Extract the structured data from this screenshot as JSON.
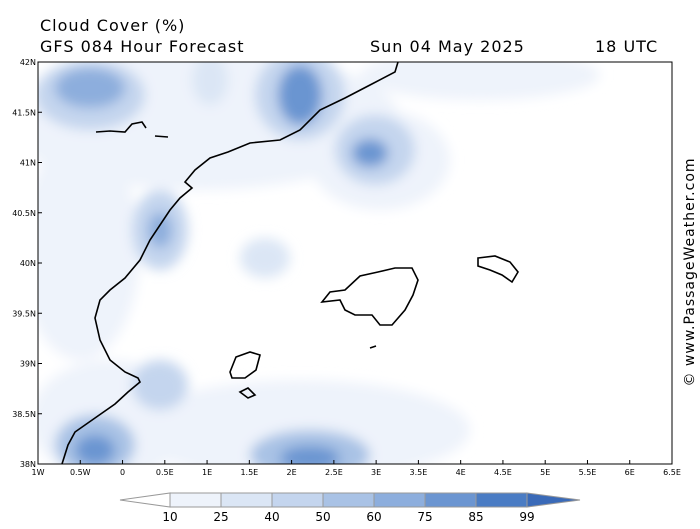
{
  "header": {
    "title": "Cloud Cover (%)",
    "subtitle": "GFS 084 Hour Forecast",
    "date": "Sun 04 May 2025",
    "time": "18 UTC"
  },
  "map": {
    "lat_labels": [
      "42N",
      "41.5N",
      "41N",
      "40.5N",
      "40N",
      "39.5N",
      "39N",
      "38.5N",
      "38N"
    ],
    "lon_labels": [
      "1W",
      "0.5W",
      "0",
      "0.5E",
      "1E",
      "1.5E",
      "2E",
      "2.5E",
      "3E",
      "3.5E",
      "4E",
      "4.5E",
      "5E",
      "5.5E",
      "6E",
      "6.5E"
    ]
  },
  "colorbar": {
    "levels": [
      10,
      25,
      40,
      50,
      60,
      75,
      85,
      99
    ]
  },
  "watermark": "© www.PassageWeather.com"
}
